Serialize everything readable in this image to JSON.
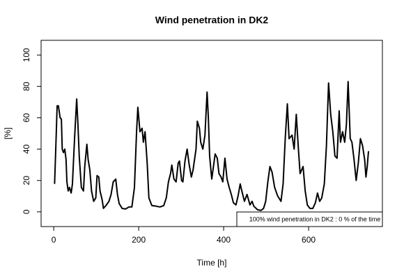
{
  "chart_data": {
    "type": "line",
    "title": "Wind penetration in DK2",
    "x_label": "Time [h]",
    "y_label": "[%]",
    "legend_text": "100% wind penetration in DK2 : 0 % of the time",
    "xlim": [
      -29.76,
      773.76
    ],
    "xticks": [
      0,
      200,
      400,
      600
    ],
    "ylim": [
      -9.4,
      109.4
    ],
    "yticks": [
      0,
      20,
      40,
      60,
      80,
      100
    ],
    "series": [
      {
        "color": "#000000",
        "x": [
          2,
          5,
          8,
          11,
          15,
          18,
          20,
          23,
          26,
          29,
          31,
          34,
          37,
          41,
          44,
          49,
          54,
          57,
          60,
          65,
          70,
          73,
          78,
          81,
          85,
          89,
          94,
          99,
          102,
          106,
          109,
          114,
          117,
          124,
          130,
          135,
          140,
          146,
          150,
          154,
          161,
          169,
          177,
          184,
          190,
          195,
          198,
          203,
          208,
          211,
          215,
          220,
          224,
          231,
          241,
          250,
          259,
          265,
          270,
          275,
          278,
          283,
          288,
          293,
          296,
          301,
          304,
          309,
          314,
          319,
          324,
          328,
          335,
          338,
          343,
          346,
          351,
          356,
          361,
          364,
          367,
          372,
          376,
          380,
          385,
          389,
          394,
          398,
          403,
          408,
          413,
          418,
          423,
          429,
          434,
          439,
          444,
          449,
          455,
          462,
          467,
          471,
          480,
          488,
          494,
          499,
          504,
          509,
          514,
          520,
          527,
          535,
          540,
          545,
          550,
          554,
          561,
          566,
          571,
          576,
          580,
          587,
          592,
          597,
          603,
          610,
          616,
          621,
          626,
          631,
          637,
          642,
          647,
          652,
          657,
          662,
          667,
          672,
          675,
          680,
          685,
          689,
          693,
          698,
          702,
          707,
          712,
          717,
          722,
          727,
          732,
          735,
          738,
          741
        ],
        "values": [
          17.8,
          42.2,
          67.6,
          67.6,
          60,
          59.1,
          40,
          37.8,
          40,
          33.3,
          19.1,
          13.3,
          15.6,
          12,
          17.8,
          46.7,
          72,
          55.6,
          35.6,
          15.6,
          13.3,
          28.9,
          43.1,
          33.3,
          26.7,
          13.3,
          6.7,
          8.9,
          23.1,
          22.2,
          13.3,
          7.6,
          2.2,
          4.4,
          6.7,
          11.1,
          19.1,
          20.9,
          11.1,
          5.3,
          2.2,
          1.8,
          3.1,
          3.1,
          15.6,
          51.1,
          66.7,
          51.1,
          53.3,
          44.4,
          51.1,
          31.1,
          8.9,
          4,
          3.6,
          3.1,
          4,
          8.9,
          19.1,
          24.4,
          29.8,
          20.9,
          19.1,
          31.1,
          32.4,
          20,
          19.1,
          32.4,
          40,
          29.8,
          22.2,
          26.7,
          40,
          57.8,
          53.3,
          44.4,
          40,
          48.9,
          76.4,
          60,
          35.6,
          20.9,
          28.9,
          36.9,
          34.2,
          24.4,
          22.2,
          19.1,
          34.2,
          20.9,
          15.6,
          11.1,
          5.8,
          4.4,
          10.2,
          17.8,
          12,
          6.7,
          11.1,
          4.4,
          6.7,
          3.6,
          1.3,
          0.9,
          2.2,
          6.7,
          19.1,
          28.9,
          25.3,
          15.6,
          10.2,
          6.7,
          17.8,
          46.7,
          68.9,
          46.7,
          48.9,
          40,
          62.2,
          40,
          24.4,
          28.9,
          13.3,
          4.4,
          2.2,
          2.2,
          5.8,
          12,
          6.7,
          8.9,
          17.8,
          42.2,
          82.2,
          62.2,
          51.1,
          35.6,
          34.2,
          64.4,
          44.4,
          51.1,
          44.4,
          55.6,
          83.1,
          46.7,
          44.4,
          33.3,
          20,
          31.1,
          46.7,
          42.2,
          33.3,
          22.2,
          28.9,
          38.7
        ]
      }
    ]
  }
}
